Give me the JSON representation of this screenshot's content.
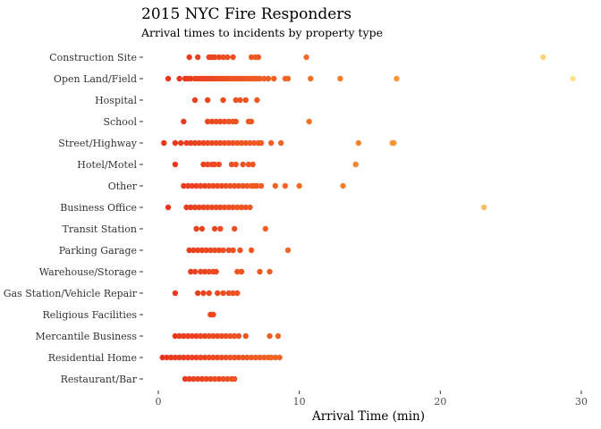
{
  "chart_data": {
    "type": "scatter",
    "title": "2015 NYC Fire Responders",
    "subtitle": "Arrival times to incidents by property type",
    "xlabel": "Arrival Time (min)",
    "ylabel": "",
    "xlim": [
      0,
      30
    ],
    "x_ticks": [
      0,
      10,
      20,
      30
    ],
    "grid": false,
    "legend": "none",
    "color_scale": {
      "low": "#e8321c",
      "mid": "#f58a2e",
      "high": "#fde68a"
    },
    "categories": [
      "Construction Site",
      "Open Land/Field",
      "Hospital",
      "School",
      "Street/Highway",
      "Hotel/Motel",
      "Other",
      "Business Office",
      "Transit Station",
      "Parking Garage",
      "Warehouse/Storage",
      "Gas Station/Vehicle Repair",
      "Religious Facilities",
      "Mercantile Business",
      "Residential Home",
      "Restaurant/Bar"
    ],
    "series": [
      {
        "category": "Construction Site",
        "x": [
          2.2,
          2.8,
          3.6,
          3.8,
          4.0,
          4.3,
          4.6,
          4.9,
          5.3,
          6.6,
          6.9,
          7.1,
          10.5,
          27.3
        ]
      },
      {
        "category": "Open Land/Field",
        "x": [
          0.7,
          1.5,
          1.9,
          2.1,
          2.3,
          2.6,
          2.8,
          3.0,
          3.2,
          3.4,
          3.6,
          3.8,
          4.0,
          4.2,
          4.4,
          4.6,
          4.8,
          5.0,
          5.2,
          5.4,
          5.6,
          5.8,
          6.0,
          6.2,
          6.4,
          6.6,
          6.8,
          7.0,
          7.2,
          7.5,
          7.8,
          8.2,
          9.0,
          9.2,
          10.8,
          12.9,
          16.9,
          29.4
        ]
      },
      {
        "category": "Hospital",
        "x": [
          2.6,
          3.5,
          4.6,
          5.5,
          5.8,
          6.2,
          7.0
        ]
      },
      {
        "category": "School",
        "x": [
          1.8,
          3.5,
          3.8,
          4.1,
          4.4,
          4.7,
          5.0,
          5.3,
          5.5,
          6.4,
          6.6,
          10.7
        ]
      },
      {
        "category": "Street/Highway",
        "x": [
          0.4,
          1.2,
          1.6,
          2.0,
          2.3,
          2.6,
          2.9,
          3.2,
          3.5,
          3.8,
          4.1,
          4.4,
          4.7,
          5.0,
          5.3,
          5.6,
          5.9,
          6.2,
          6.5,
          6.8,
          7.1,
          7.3,
          8.0,
          8.7,
          14.2,
          16.6,
          16.7
        ]
      },
      {
        "category": "Hotel/Motel",
        "x": [
          1.2,
          3.2,
          3.5,
          3.8,
          4.0,
          4.3,
          5.2,
          5.5,
          6.0,
          6.4,
          6.7,
          14.0
        ]
      },
      {
        "category": "Other",
        "x": [
          1.8,
          2.1,
          2.4,
          2.7,
          3.0,
          3.3,
          3.6,
          3.9,
          4.2,
          4.5,
          4.8,
          5.1,
          5.4,
          5.7,
          6.0,
          6.3,
          6.6,
          6.8,
          7.0,
          7.3,
          8.3,
          9.0,
          10.0,
          13.1
        ]
      },
      {
        "category": "Business Office",
        "x": [
          0.7,
          2.0,
          2.3,
          2.6,
          2.9,
          3.2,
          3.5,
          3.8,
          4.1,
          4.4,
          4.7,
          5.0,
          5.3,
          5.6,
          5.9,
          6.2,
          6.5,
          23.1
        ]
      },
      {
        "category": "Transit Station",
        "x": [
          2.7,
          3.1,
          4.0,
          4.4,
          5.4,
          7.6
        ]
      },
      {
        "category": "Parking Garage",
        "x": [
          2.2,
          2.5,
          2.8,
          3.1,
          3.4,
          3.7,
          4.0,
          4.3,
          4.6,
          5.0,
          5.3,
          5.8,
          6.6,
          9.2
        ]
      },
      {
        "category": "Warehouse/Storage",
        "x": [
          2.3,
          2.6,
          3.0,
          3.3,
          3.6,
          3.9,
          4.1,
          5.6,
          5.9,
          7.2,
          7.9
        ]
      },
      {
        "category": "Gas Station/Vehicle Repair",
        "x": [
          1.2,
          2.8,
          3.2,
          3.6,
          4.2,
          4.6,
          5.0,
          5.3,
          5.6
        ]
      },
      {
        "category": "Religious Facilities",
        "x": [
          3.7,
          3.9
        ]
      },
      {
        "category": "Mercantile Business",
        "x": [
          1.2,
          1.5,
          1.8,
          2.1,
          2.4,
          2.7,
          3.0,
          3.3,
          3.6,
          3.9,
          4.2,
          4.5,
          4.8,
          5.1,
          5.4,
          5.7,
          6.2,
          7.9,
          8.5
        ]
      },
      {
        "category": "Residential Home",
        "x": [
          0.3,
          0.6,
          0.9,
          1.2,
          1.5,
          1.8,
          2.1,
          2.4,
          2.7,
          3.0,
          3.3,
          3.6,
          3.9,
          4.2,
          4.5,
          4.8,
          5.1,
          5.4,
          5.7,
          6.0,
          6.3,
          6.6,
          6.9,
          7.2,
          7.5,
          7.8,
          8.0,
          8.3,
          8.6
        ]
      },
      {
        "category": "Restaurant/Bar",
        "x": [
          1.9,
          2.2,
          2.5,
          2.8,
          3.1,
          3.4,
          3.7,
          4.0,
          4.3,
          4.6,
          4.9,
          5.2,
          5.4
        ]
      }
    ]
  }
}
